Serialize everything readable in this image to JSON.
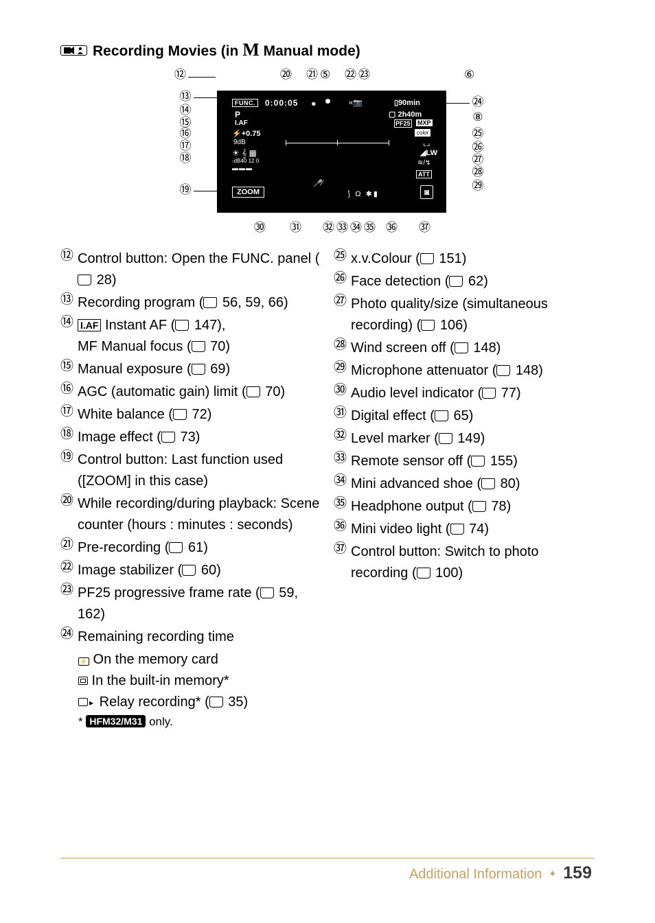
{
  "header": {
    "title_pre": "Recording Movies (in ",
    "title_post": " Manual mode)",
    "m_glyph": "M"
  },
  "diagram": {
    "top": {
      "n12": "⑫",
      "n20": "⑳",
      "n21": "㉑",
      "n5": "⑤",
      "n22": "㉒",
      "n23": "㉓",
      "n6": "⑥"
    },
    "left": {
      "n13": "⑬",
      "n14": "⑭",
      "n15": "⑮",
      "n16": "⑯",
      "n17": "⑰",
      "n18": "⑱",
      "n19": "⑲"
    },
    "right": {
      "n24": "㉔",
      "n8": "⑧",
      "n25": "㉕",
      "n26": "㉖",
      "n27": "㉗",
      "n28": "㉘",
      "n29": "㉙"
    },
    "bottom": {
      "n30": "㉚",
      "n31": "㉛",
      "n32": "㉜",
      "n33": "㉝",
      "n34": "㉞",
      "n35": "㉟",
      "n36": "㊱",
      "n37": "㊲"
    }
  },
  "lcd": {
    "func": "FUNC.",
    "time": "0:00:05",
    "stab": "«📷",
    "batt": "▯90min",
    "p": "P",
    "rectime": "▢ 2h40m",
    "iaf": "I.AF",
    "pf25": "PF25",
    "mxp": "MXP",
    "exp": "⚡+0.75",
    "color": "color",
    "gain": "9dB",
    "wb": "☀ 𝄞 ▦",
    "photo": "◢LW",
    "meter": "-dB40     12     0",
    "wind": "≋/↯",
    "att": "ATT",
    "zoom": "ZOOM",
    "cam": "◙",
    "bottom": "⟆ Ω ✱▮",
    "mic": "🎤⁄"
  },
  "left_col": [
    {
      "n": "⑫",
      "t": "Control button: Open the FUNC. panel (",
      "ref": " 28)"
    },
    {
      "n": "⑬",
      "t": "Recording program (",
      "ref": " 56, 59, 66)"
    },
    {
      "n": "⑭",
      "iaf": true,
      "pre": " Instant AF (",
      "ref": " 147),",
      "line2": "MF Manual focus (",
      "ref2": " 70)"
    },
    {
      "n": "⑮",
      "t": "Manual exposure (",
      "ref": " 69)"
    },
    {
      "n": "⑯",
      "t": "AGC (automatic gain) limit (",
      "ref": " 70)"
    },
    {
      "n": "⑰",
      "t": "White balance (",
      "ref": " 72)"
    },
    {
      "n": "⑱",
      "t": "Image effect (",
      "ref": " 73)"
    },
    {
      "n": "⑲",
      "t": "Control button: Last function used ([ZOOM] in this case)"
    },
    {
      "n": "⑳",
      "t": "While recording/during playback: Scene counter (hours : minutes : seconds)"
    },
    {
      "n": "㉑",
      "t": "Pre-recording (",
      "ref": " 61)"
    },
    {
      "n": "㉒",
      "t": "Image stabilizer (",
      "ref": " 60)"
    },
    {
      "n": "㉓",
      "t": "PF25 progressive frame rate (",
      "ref": " 59, 162)"
    },
    {
      "n": "㉔",
      "t": "Remaining recording time"
    }
  ],
  "item24_sub": {
    "a": " On the memory card",
    "b": " In the built-in memory*",
    "c_pre": " Relay recording* (",
    "c_ref": " 35)",
    "note_pre": "* ",
    "note_post": " only.",
    "badge": "HFM32/M31"
  },
  "right_col": [
    {
      "n": "㉕",
      "t": "x.v.Colour (",
      "ref": " 151)"
    },
    {
      "n": "㉖",
      "t": "Face detection (",
      "ref": " 62)"
    },
    {
      "n": "㉗",
      "t": "Photo quality/size (simultaneous recording) (",
      "ref": " 106)"
    },
    {
      "n": "㉘",
      "t": "Wind screen off (",
      "ref": " 148)"
    },
    {
      "n": "㉙",
      "t": "Microphone attenuator (",
      "ref": " 148)"
    },
    {
      "n": "㉚",
      "t": "Audio level indicator (",
      "ref": " 77)"
    },
    {
      "n": "㉛",
      "t": "Digital effect (",
      "ref": " 65)"
    },
    {
      "n": "㉜",
      "t": "Level marker (",
      "ref": " 149)"
    },
    {
      "n": "㉝",
      "t": "Remote sensor off (",
      "ref": " 155)"
    },
    {
      "n": "㉞",
      "t": "Mini advanced shoe (",
      "ref": " 80)"
    },
    {
      "n": "㉟",
      "t": "Headphone output (",
      "ref": " 78)"
    },
    {
      "n": "㊱",
      "t": "Mini video light (",
      "ref": " 74)"
    },
    {
      "n": "㊲",
      "t": "Control button: Switch to photo recording (",
      "ref": " 100)"
    }
  ],
  "footer": {
    "chapter": "Additional Information",
    "page": "159"
  }
}
